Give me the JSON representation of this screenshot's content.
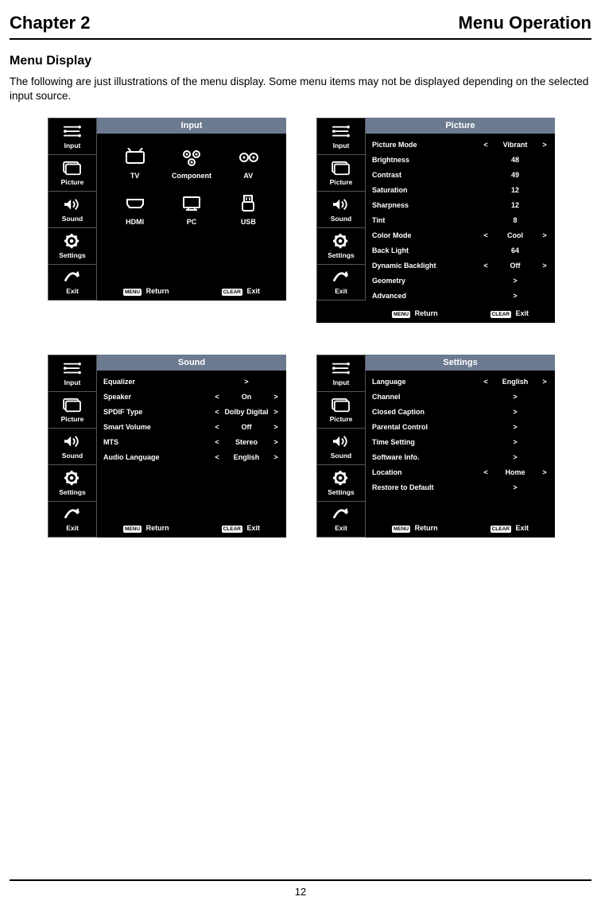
{
  "header": {
    "chapter": "Chapter 2",
    "title": "Menu Operation"
  },
  "section_heading": "Menu Display",
  "intro": "The following are just illustrations of the menu display. Some menu items may not be displayed depending on the selected input source.",
  "sidebar_labels": {
    "input": "Input",
    "picture": "Picture",
    "sound": "Sound",
    "settings": "Settings",
    "exit": "Exit"
  },
  "footer": {
    "menu_tag": "MENU",
    "return": "Return",
    "clear_tag": "CLEAR",
    "exit": "Exit"
  },
  "menus": {
    "input": {
      "title": "Input",
      "sources": [
        {
          "label": "TV"
        },
        {
          "label": "Component"
        },
        {
          "label": "AV"
        },
        {
          "label": "HDMI"
        },
        {
          "label": "PC"
        },
        {
          "label": "USB"
        }
      ]
    },
    "picture": {
      "title": "Picture",
      "rows": [
        {
          "label": "Picture Mode",
          "lt": "<",
          "val": "Vibrant",
          "gt": ">"
        },
        {
          "label": "Brightness",
          "lt": "",
          "val": "48",
          "gt": ""
        },
        {
          "label": "Contrast",
          "lt": "",
          "val": "49",
          "gt": ""
        },
        {
          "label": "Saturation",
          "lt": "",
          "val": "12",
          "gt": ""
        },
        {
          "label": "Sharpness",
          "lt": "",
          "val": "12",
          "gt": ""
        },
        {
          "label": "Tint",
          "lt": "",
          "val": "8",
          "gt": ""
        },
        {
          "label": "Color Mode",
          "lt": "<",
          "val": "Cool",
          "gt": ">"
        },
        {
          "label": "Back Light",
          "lt": "",
          "val": "64",
          "gt": ""
        },
        {
          "label": "Dynamic Backlight",
          "lt": "<",
          "val": "Off",
          "gt": ">"
        },
        {
          "label": "Geometry",
          "lt": "",
          "val": ">",
          "gt": ""
        },
        {
          "label": "Advanced",
          "lt": "",
          "val": ">",
          "gt": ""
        }
      ]
    },
    "sound": {
      "title": "Sound",
      "rows": [
        {
          "label": "Equalizer",
          "lt": "",
          "val": ">",
          "gt": ""
        },
        {
          "label": "Speaker",
          "lt": "<",
          "val": "On",
          "gt": ">"
        },
        {
          "label": "SPDIF Type",
          "lt": "<",
          "val": "Dolby Digital",
          "gt": ">"
        },
        {
          "label": "Smart Volume",
          "lt": "<",
          "val": "Off",
          "gt": ">"
        },
        {
          "label": "MTS",
          "lt": "<",
          "val": "Stereo",
          "gt": ">"
        },
        {
          "label": "Audio Language",
          "lt": "<",
          "val": "English",
          "gt": ">"
        }
      ]
    },
    "settings": {
      "title": "Settings",
      "rows": [
        {
          "label": "Language",
          "lt": "<",
          "val": "English",
          "gt": ">"
        },
        {
          "label": "Channel",
          "lt": "",
          "val": ">",
          "gt": ""
        },
        {
          "label": "Closed Caption",
          "lt": "",
          "val": ">",
          "gt": ""
        },
        {
          "label": "Parental Control",
          "lt": "",
          "val": ">",
          "gt": ""
        },
        {
          "label": "Time Setting",
          "lt": "",
          "val": ">",
          "gt": ""
        },
        {
          "label": "Software Info.",
          "lt": "",
          "val": ">",
          "gt": ""
        },
        {
          "label": "Location",
          "lt": "<",
          "val": "Home",
          "gt": ">"
        },
        {
          "label": "Restore to Default",
          "lt": "",
          "val": ">",
          "gt": ""
        }
      ]
    }
  },
  "page_number": "12"
}
